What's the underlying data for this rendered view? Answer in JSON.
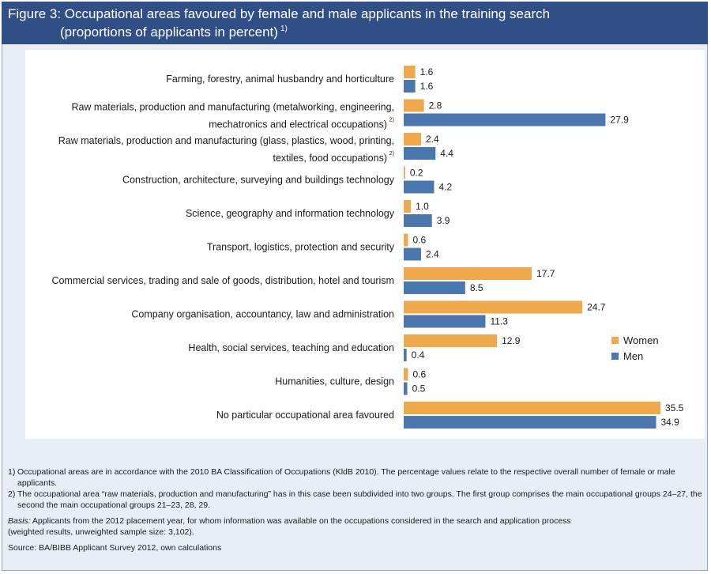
{
  "header": {
    "title_line1": "Figure 3: Occupational areas favoured by female and male applicants in the training search",
    "title_line2": "(proportions of applicants in percent)",
    "title_sup": "1)"
  },
  "colors": {
    "women": "#f0a94a",
    "men": "#4a77ad",
    "header_bg": "#2f4f86"
  },
  "chart_data": {
    "type": "bar",
    "orientation": "horizontal",
    "categories": [
      [
        "Farming, forestry, animal husbandry and horticulture"
      ],
      [
        "Raw materials, production and manufacturing (metalworking, engineering,",
        "mechatronics and electrical occupations)"
      ],
      [
        "Raw materials, production and manufacturing (glass, plastics, wood, printing,",
        "textiles, food occupations)"
      ],
      [
        "Construction, architecture, surveying and buildings technology"
      ],
      [
        "Science, geography and information technology"
      ],
      [
        "Transport, logistics, protection and security"
      ],
      [
        "Commercial services, trading and sale of goods, distribution, hotel and tourism"
      ],
      [
        "Company organisation, accountancy, law and administration"
      ],
      [
        "Health, social services, teaching and education"
      ],
      [
        "Humanities, culture, design"
      ],
      [
        "No particular occupational area favoured"
      ]
    ],
    "category_sups": [
      "",
      "2)",
      "2)",
      "",
      "",
      "",
      "",
      "",
      "",
      "",
      ""
    ],
    "series": [
      {
        "name": "Women",
        "values": [
          1.6,
          2.8,
          2.4,
          0.2,
          1.0,
          0.6,
          17.7,
          24.7,
          12.9,
          0.6,
          35.5
        ]
      },
      {
        "name": "Men",
        "values": [
          1.6,
          27.9,
          4.4,
          4.2,
          3.9,
          2.4,
          8.5,
          11.3,
          0.4,
          0.5,
          34.9
        ]
      }
    ],
    "value_labels": [
      [
        "1.6",
        "2.8",
        "2.4",
        "0.2",
        "1.0",
        "0.6",
        "17.7",
        "24.7",
        "12.9",
        "0.6",
        "35.5"
      ],
      [
        "1.6",
        "27.9",
        "4.4",
        "4.2",
        "3.9",
        "2.4",
        "8.5",
        "11.3",
        "0.4",
        "0.5",
        "34.9"
      ]
    ],
    "xlim": [
      0,
      35.5
    ],
    "grid": false,
    "legend_position": "right"
  },
  "notes": [
    {
      "num": "1)",
      "text": "Occupational areas are in accordance with the 2010 BA Classification of Occupations (KldB 2010). The percentage values relate to the respective overall number of female or male applicants."
    },
    {
      "num": "2)",
      "text": "The occupational area “raw materials, production and manufacturing” has in this case been subdivided into two groups. The first group comprises the main occupational groups 24–27, the second  the main occupational groups 21–23, 28, 29."
    }
  ],
  "basis": {
    "label": "Basis:",
    "text": " Applicants from the 2012 placement year, for whom information was available on the occupations considered in the search and application process",
    "text2": "(weighted results, unweighted sample size: 3,102)."
  },
  "source": "Source: BA/BIBB Applicant Survey 2012, own calculations"
}
